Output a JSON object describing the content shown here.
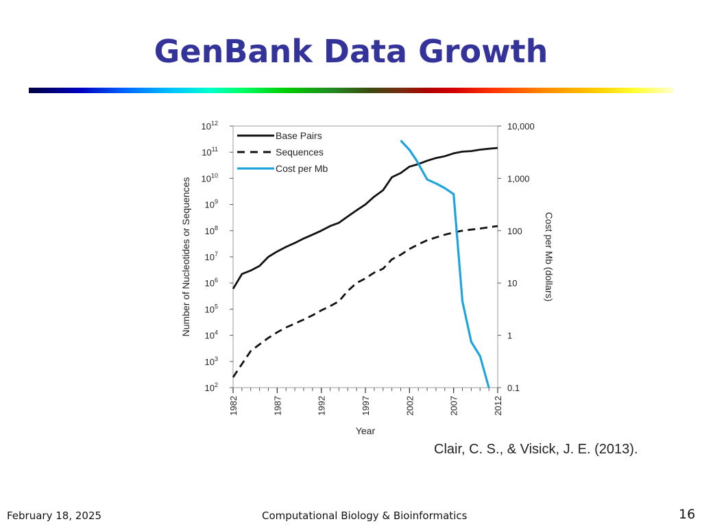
{
  "slide": {
    "title": "GenBank Data Growth",
    "citation": "Clair, C. S., & Visick, J. E. (2013).",
    "footer_date": "February 18, 2025",
    "footer_course": "Computational Biology & Bioinformatics",
    "page_number": "16"
  },
  "chart_data": {
    "type": "line",
    "xlabel": "Year",
    "ylabel_left": "Number of Nucleotides or Sequences",
    "ylabel_right": "Cost per Mb (dollars)",
    "xlim": [
      1982,
      2012
    ],
    "x_ticks": [
      "1982",
      "1987",
      "1992",
      "1997",
      "2002",
      "2007",
      "2012"
    ],
    "y_left_scale": "log",
    "y_left_ticks": [
      {
        "base": "10",
        "exp": "2"
      },
      {
        "base": "10",
        "exp": "3"
      },
      {
        "base": "10",
        "exp": "4"
      },
      {
        "base": "10",
        "exp": "5"
      },
      {
        "base": "10",
        "exp": "6"
      },
      {
        "base": "10",
        "exp": "7"
      },
      {
        "base": "10",
        "exp": "8"
      },
      {
        "base": "10",
        "exp": "9"
      },
      {
        "base": "10",
        "exp": "10"
      },
      {
        "base": "10",
        "exp": "11"
      },
      {
        "base": "10",
        "exp": "12"
      }
    ],
    "y_right_scale": "log",
    "y_right_ticks": [
      "0.1",
      "1",
      "10",
      "100",
      "1,000",
      "10,000"
    ],
    "legend_position": "top-left",
    "series": [
      {
        "name": "Base Pairs",
        "axis": "left",
        "style": "solid",
        "color": "#111111",
        "x": [
          1982,
          1983,
          1984,
          1985,
          1986,
          1987,
          1988,
          1989,
          1990,
          1991,
          1992,
          1993,
          1994,
          1995,
          1996,
          1997,
          1998,
          1999,
          2000,
          2001,
          2002,
          2003,
          2004,
          2005,
          2006,
          2007,
          2008,
          2009,
          2010,
          2011,
          2012
        ],
        "y": [
          600000.0,
          2200000.0,
          3000000.0,
          4500000.0,
          10000000.0,
          16000000.0,
          24000000.0,
          34000000.0,
          50000000.0,
          70000000.0,
          100000000.0,
          150000000.0,
          200000000.0,
          350000000.0,
          600000000.0,
          1000000000.0,
          2000000000.0,
          3500000000.0,
          11000000000.0,
          16000000000.0,
          28000000000.0,
          35000000000.0,
          47000000000.0,
          60000000000.0,
          70000000000.0,
          90000000000.0,
          105000000000.0,
          110000000000.0,
          125000000000.0,
          135000000000.0,
          145000000000.0
        ]
      },
      {
        "name": "Sequences",
        "axis": "left",
        "style": "dashed",
        "color": "#111111",
        "x": [
          1982,
          1983,
          1984,
          1985,
          1986,
          1987,
          1988,
          1989,
          1990,
          1991,
          1992,
          1993,
          1994,
          1995,
          1996,
          1997,
          1998,
          1999,
          2000,
          2001,
          2002,
          2003,
          2004,
          2005,
          2006,
          2007,
          2008,
          2009,
          2010,
          2011,
          2012
        ],
        "y": [
          250,
          800,
          2500,
          4500,
          8000,
          13000.0,
          20000.0,
          28000.0,
          40000.0,
          58000.0,
          90000.0,
          130000.0,
          200000.0,
          500000.0,
          1000000.0,
          1500000.0,
          2500000.0,
          3500000.0,
          8000000.0,
          12000000.0,
          20000000.0,
          30000000.0,
          43000000.0,
          55000000.0,
          70000000.0,
          85000000.0,
          100000000.0,
          110000000.0,
          120000000.0,
          135000000.0,
          150000000.0
        ]
      },
      {
        "name": "Cost per Mb",
        "axis": "right",
        "style": "solid",
        "color": "#1fa3dd",
        "x": [
          2001,
          2002,
          2002.8,
          2004,
          2005,
          2006,
          2007,
          2008,
          2009,
          2010,
          2011
        ],
        "y": [
          5300,
          3500,
          2200,
          950,
          800,
          650,
          500,
          4.5,
          0.75,
          0.4,
          0.1
        ]
      }
    ]
  }
}
